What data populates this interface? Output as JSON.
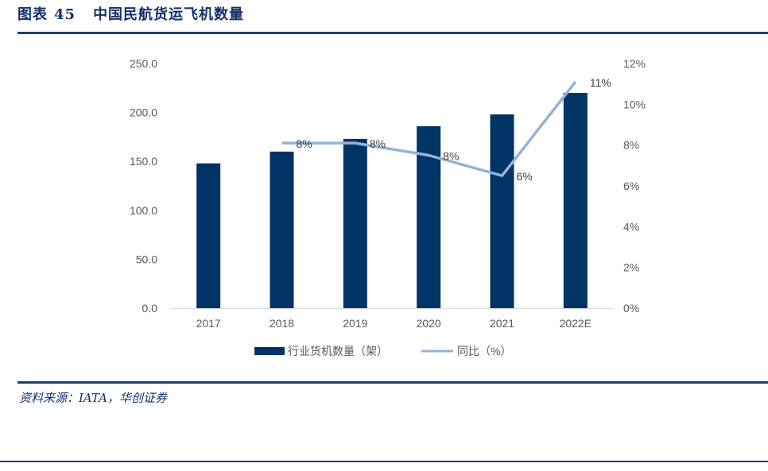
{
  "figure": {
    "label": "图表",
    "number": "45",
    "title": "中国民航货运飞机数量",
    "source": "资料来源：IATA，华创证券"
  },
  "colors": {
    "bar": "#003366",
    "line": "#95b3d7",
    "rule": "#1f3c74",
    "title": "#14306b",
    "axis_text": "#595959"
  },
  "chart_data": {
    "type": "bar",
    "categories": [
      "2017",
      "2018",
      "2019",
      "2020",
      "2021",
      "2022E"
    ],
    "series": [
      {
        "name": "行业货机数量（架）",
        "type": "bar",
        "axis": "left",
        "values": [
          148,
          160,
          173,
          186,
          198,
          220
        ]
      },
      {
        "name": "同比（%）",
        "type": "line",
        "axis": "right",
        "values": [
          null,
          8.1,
          8.1,
          7.5,
          6.5,
          11.1
        ],
        "data_labels": [
          null,
          "8%",
          "8%",
          "8%",
          "6%",
          "11%"
        ]
      }
    ],
    "y_left": {
      "min": 0,
      "max": 250,
      "ticks": [
        "0.0",
        "50.0",
        "100.0",
        "150.0",
        "200.0",
        "250.0"
      ]
    },
    "y_right": {
      "min": 0,
      "max": 12,
      "ticks": [
        "0%",
        "2%",
        "4%",
        "6%",
        "8%",
        "10%",
        "12%"
      ]
    },
    "grid": false,
    "legend_position": "bottom"
  }
}
